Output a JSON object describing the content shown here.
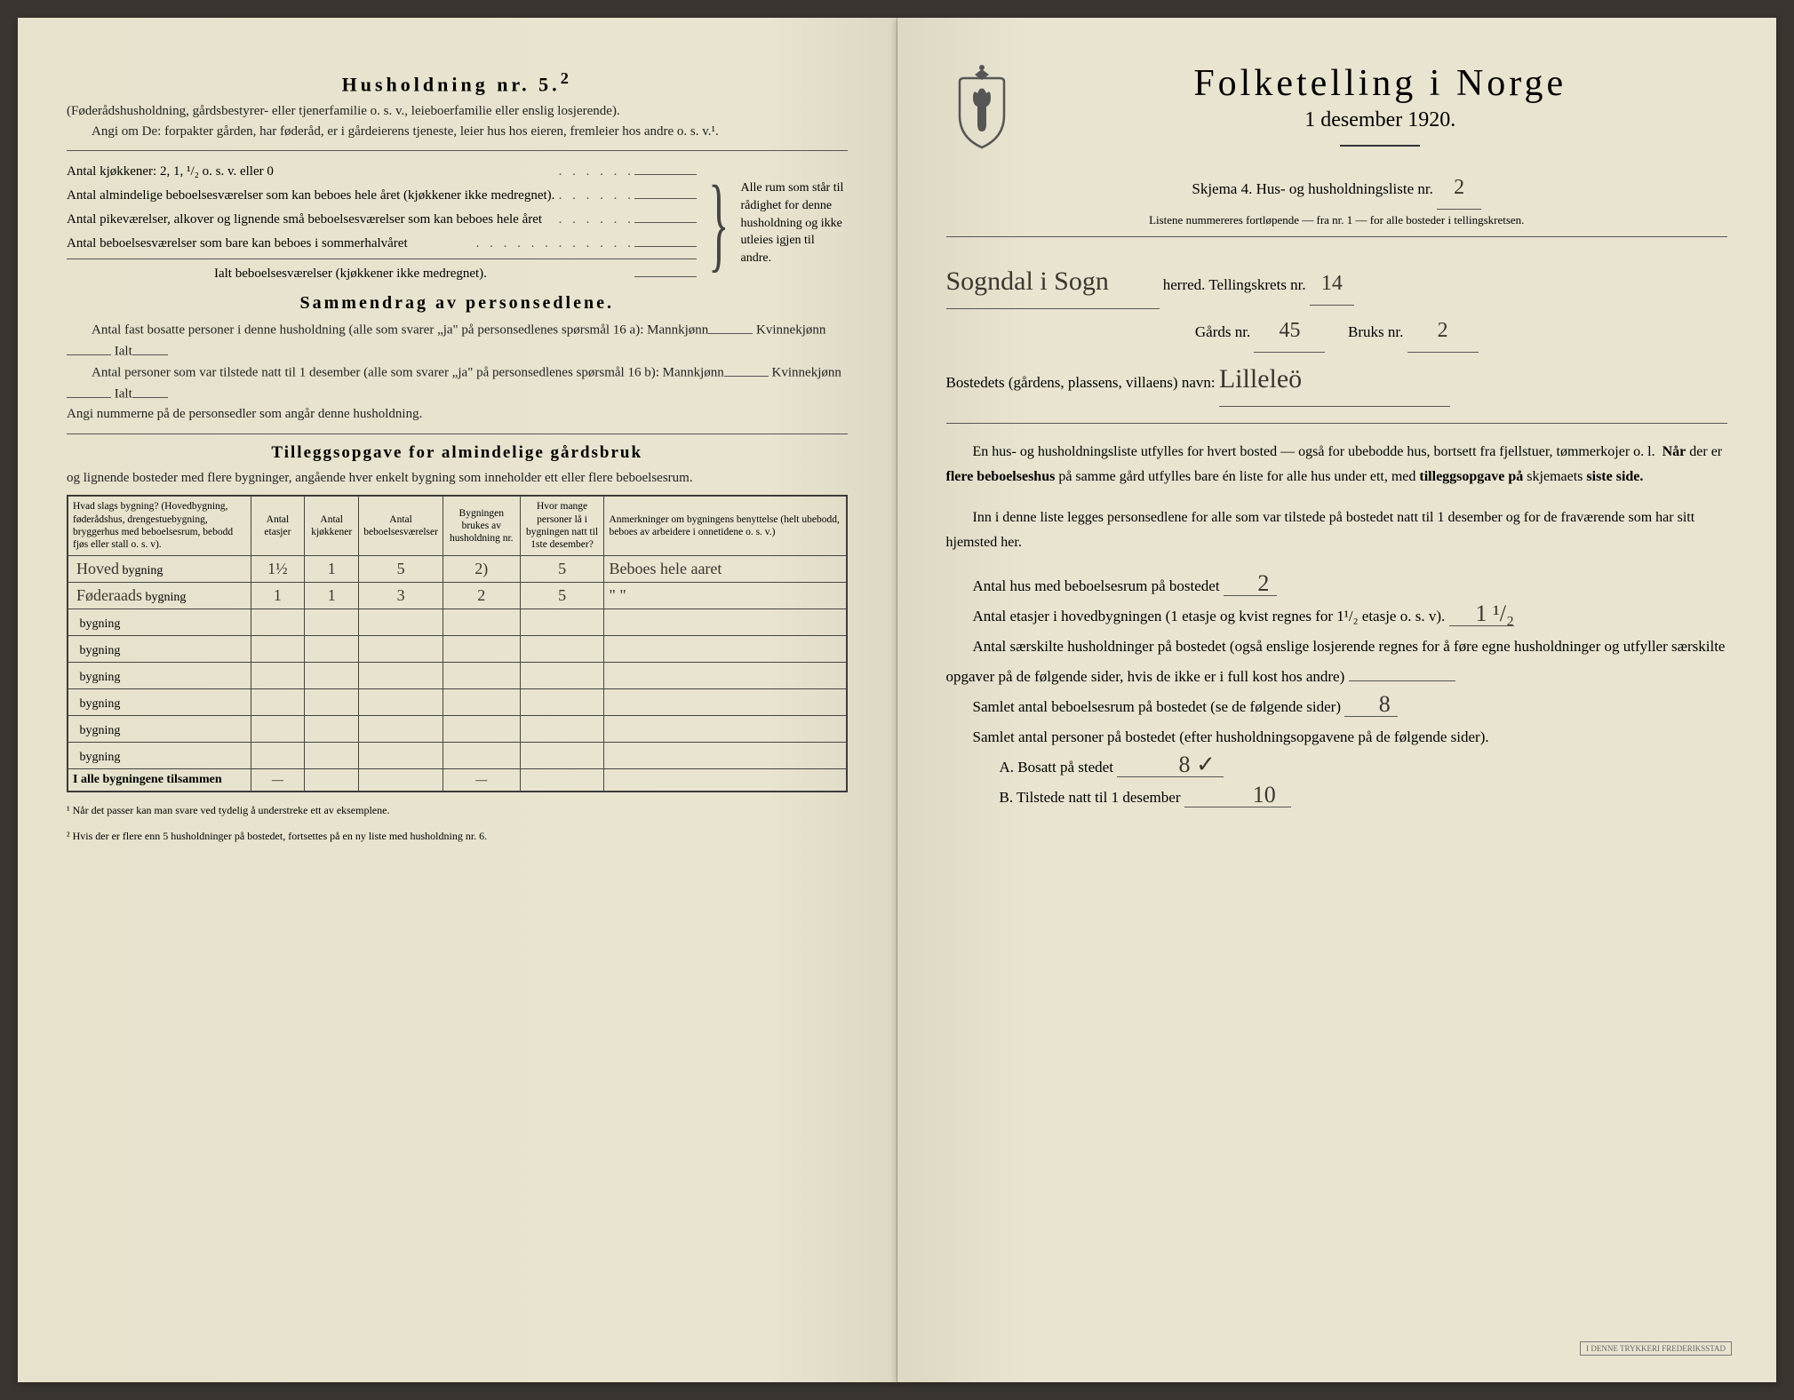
{
  "left": {
    "household_heading": "Husholdning nr. 5.",
    "household_sup": "2",
    "household_sub1": "(Føderådshusholdning, gårdsbestyrer- eller tjenerfamilie o. s. v., leieboerfamilie eller enslig losjerende).",
    "household_sub2": "Angi om De: forpakter gården, har føderåd, er i gårdeierens tjeneste, leier hus hos eieren, fremleier hos andre o. s. v.¹.",
    "kitchens_line": "Antal kjøkkener: 2, 1, ¹/₂ o. s. v. eller 0",
    "rooms_all_year": "Antal almindelige beboelsesværelser som kan beboes hele året (kjøkkener ikke medregnet).",
    "maids_rooms": "Antal pikeværelser, alkover og lignende små beboelsesværelser som kan beboes hele året",
    "summer_rooms": "Antal beboelsesværelser som bare kan beboes i sommerhalvåret",
    "total_rooms": "Ialt beboelsesværelser (kjøkkener ikke medregnet).",
    "brace_text": "Alle rum som står til rådighet for denne husholdning og ikke utleies igjen til andre.",
    "summary_title": "Sammendrag av personsedlene.",
    "summary_l1": "Antal fast bosatte personer i denne husholdning (alle som svarer „ja\" på personsedlenes spørsmål 16 a): Mannkjønn",
    "summary_kv": "Kvinnekjønn",
    "summary_ialt": "Ialt",
    "summary_l2": "Antal personer som var tilstede natt til 1 desember (alle som svarer „ja\" på personsedlenes spørsmål 16 b): Mannkjønn",
    "summary_l3": "Angi nummerne på de personsedler som angår denne husholdning.",
    "tillegg_title": "Tilleggsopgave for almindelige gårdsbruk",
    "tillegg_sub": "og lignende bosteder med flere bygninger, angående hver enkelt bygning som inneholder ett eller flere beboelsesrum.",
    "table": {
      "headers": {
        "c1": "Hvad slags bygning?\n(Hovedbygning, føderådshus, drengestuebygning, bryggerhus med beboelsesrum, bebodd fjøs eller stall o. s. v).",
        "c2": "Antal etasjer",
        "c3": "Antal kjøkkener",
        "c4": "Antal beboelsesværelser",
        "c5": "Bygningen brukes av husholdning nr.",
        "c6": "Hvor mange personer lå i bygningen natt til 1ste desember?",
        "c7": "Anmerkninger om bygningens benyttelse (helt ubebodd, beboes av arbeidere i onnetidene o. s. v.)"
      },
      "rows": [
        {
          "label_hw": "Hoved",
          "label": "bygning",
          "c2": "1½",
          "c3": "1",
          "c4": "5",
          "c5": "2)",
          "c6": "5",
          "c7": "Beboes hele aaret"
        },
        {
          "label_hw": "Føderaads",
          "label": "bygning",
          "c2": "1",
          "c3": "1",
          "c4": "3",
          "c5": "2",
          "c6": "5",
          "c7": "\"     \""
        },
        {
          "label_hw": "",
          "label": "bygning",
          "c2": "",
          "c3": "",
          "c4": "",
          "c5": "",
          "c6": "",
          "c7": ""
        },
        {
          "label_hw": "",
          "label": "bygning",
          "c2": "",
          "c3": "",
          "c4": "",
          "c5": "",
          "c6": "",
          "c7": ""
        },
        {
          "label_hw": "",
          "label": "bygning",
          "c2": "",
          "c3": "",
          "c4": "",
          "c5": "",
          "c6": "",
          "c7": ""
        },
        {
          "label_hw": "",
          "label": "bygning",
          "c2": "",
          "c3": "",
          "c4": "",
          "c5": "",
          "c6": "",
          "c7": ""
        },
        {
          "label_hw": "",
          "label": "bygning",
          "c2": "",
          "c3": "",
          "c4": "",
          "c5": "",
          "c6": "",
          "c7": ""
        },
        {
          "label_hw": "",
          "label": "bygning",
          "c2": "",
          "c3": "",
          "c4": "",
          "c5": "",
          "c6": "",
          "c7": ""
        }
      ],
      "totals_label": "I alle bygningene tilsammen",
      "dash": "—"
    },
    "footnote1": "¹ Når det passer kan man svare ved tydelig å understreke ett av eksemplene.",
    "footnote2": "² Hvis der er flere enn 5 husholdninger på bostedet, fortsettes på en ny liste med husholdning nr. 6."
  },
  "right": {
    "title": "Folketelling i Norge",
    "date": "1 desember 1920.",
    "schema_line_pre": "Skjema 4.  Hus- og husholdningsliste nr.",
    "schema_nr": "2",
    "listene": "Listene nummereres fortløpende — fra nr. 1 — for alle bosteder i tellingskretsen.",
    "herred_hw": "Sogndal i Sogn",
    "herred_label": " herred.   Tellingskrets nr.",
    "krets_nr": "14",
    "gards_label": "Gårds nr.",
    "gards_nr": "45",
    "bruks_label": "Bruks nr.",
    "bruks_nr": "2",
    "bosted_label": "Bostedets (gårdens, plassens, villaens) navn:",
    "bosted_hw": "Lilleleö",
    "para1": "En hus- og husholdningsliste utfylles for hvert bosted — også for ubebodde hus, bortsett fra fjellstuer, tømmerkojer o. l.  Når der er flere beboelseshus på samme gård utfylles bare én liste for alle hus under ett, med tilleggsopgave på skjemaets siste side.",
    "para2": "Inn i denne liste legges personsedlene for alle som var tilstede på bostedet natt til 1 desember og for de fraværende som har sitt hjemsted her.",
    "q_hus": "Antal hus med beboelsesrum på bostedet",
    "q_hus_val": "2",
    "q_etasjer_pre": "Antal etasjer i hovedbygningen (1 etasje og kvist regnes for 1¹/₂ etasje o. s. v).",
    "q_etasjer_val": "1 ¹/₂",
    "q_hush": "Antal særskilte husholdninger på bostedet (også enslige losjerende regnes for å føre egne husholdninger og utfyller særskilte opgaver på de følgende sider, hvis de ikke er i full kost hos andre)",
    "q_rooms": "Samlet antal beboelsesrum på bostedet (se de følgende sider)",
    "q_rooms_val": "8",
    "q_persons": "Samlet antal personer på bostedet (efter husholdningsopgavene på de følgende sider).",
    "q_a": "A.  Bosatt på stedet",
    "q_a_val": "8 ✓",
    "q_b": "B.  Tilstede natt til 1 desember",
    "q_b_val": "10",
    "stamp": "I DENNE TRYKKERI FREDERIKSSTAD"
  }
}
